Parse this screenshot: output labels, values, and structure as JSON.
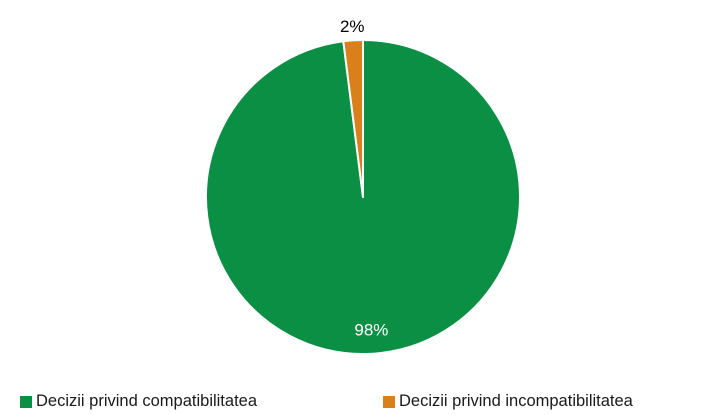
{
  "chart_data": {
    "type": "pie",
    "title": "",
    "categories": [
      "Decizii privind compatibilitatea",
      "Decizii privind incompatibilitatea"
    ],
    "values": [
      98,
      2
    ],
    "data_labels": [
      "98%",
      "2%"
    ],
    "colors": [
      "#0b8f45",
      "#d9801b"
    ],
    "label_colors": [
      "#ffffff",
      "#000000"
    ],
    "legend_position": "bottom",
    "start_angle_deg": 0,
    "direction": "clockwise"
  }
}
